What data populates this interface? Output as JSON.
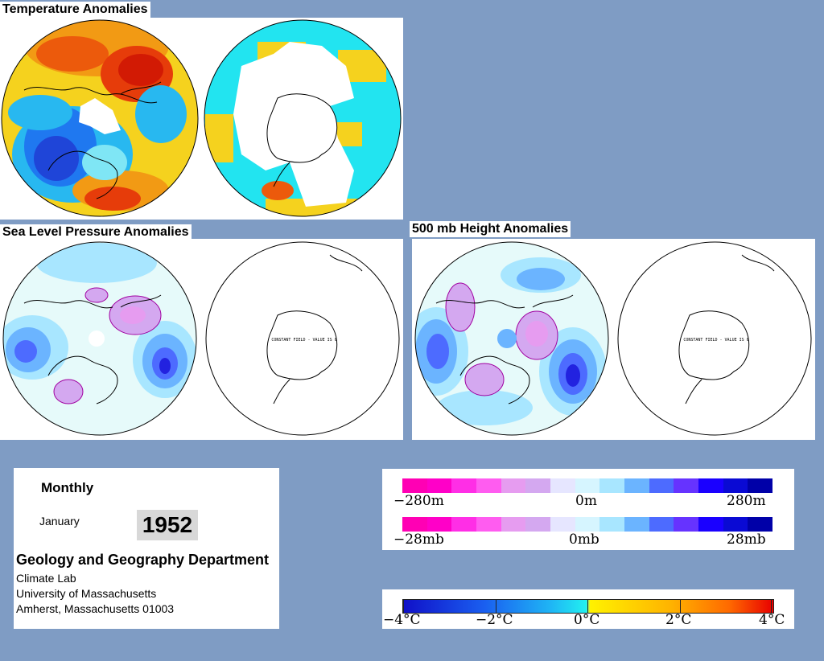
{
  "sections": {
    "temperature": "Temperature Anomalies",
    "slp": "Sea Level Pressure Anomalies",
    "height": "500 mb Height Anomalies"
  },
  "map_notes": {
    "slp_south": "CONSTANT FIELD - VALUE IS 0",
    "height_south": "CONSTANT FIELD - VALUE IS 0"
  },
  "info": {
    "period": "Monthly",
    "month": "January",
    "year": "1952",
    "department": "Geology and Geography Department",
    "lab": "Climate Lab",
    "university": "University of Massachusetts",
    "address": "Amherst, Massachusetts 01003"
  },
  "legends": {
    "height": {
      "min": "−280m",
      "mid": "0m",
      "max": "280m"
    },
    "pressure": {
      "min": "−28mb",
      "mid": "0mb",
      "max": "28mb"
    },
    "temperature": {
      "labels": [
        "−4°C",
        "−2°C",
        "0°C",
        "2°C",
        "4°C"
      ]
    }
  },
  "colors": {
    "background": "#7f9cc4",
    "anomaly_scale": [
      "#ff00b4",
      "#ff00c8",
      "#ff2ee6",
      "#ff5cf0",
      "#e69cf0",
      "#d4a8f0",
      "#e6e6ff",
      "#d6f5ff",
      "#a8e6ff",
      "#6bb4ff",
      "#4d6bff",
      "#6633ff",
      "#1a00ff",
      "#0a0ad4",
      "#0000a8"
    ]
  }
}
